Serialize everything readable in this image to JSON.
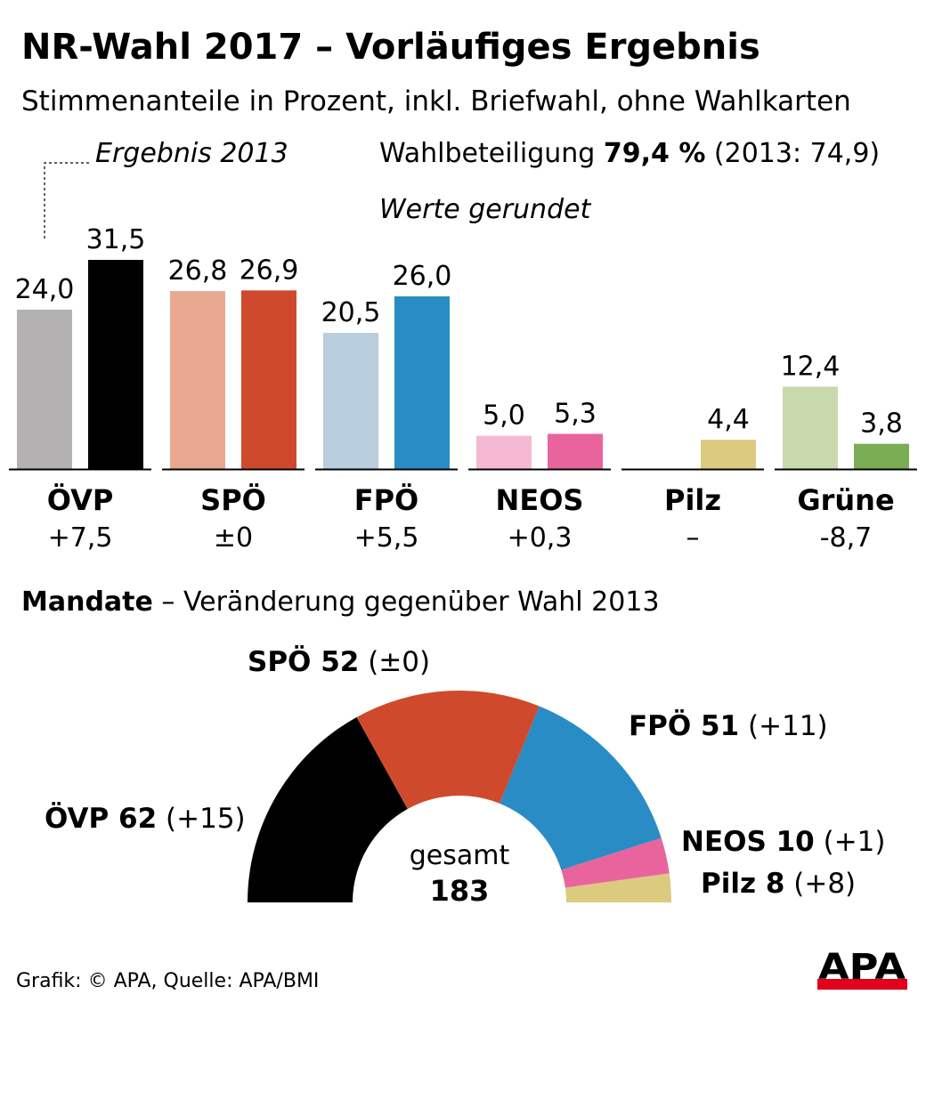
{
  "title": "NR-Wahl 2017 – Vorläufiges Ergebnis",
  "subtitle": "Stimmenanteile in Prozent, inkl. Briefwahl, ohne Wahlkarten",
  "legend_2013": "Ergebnis 2013",
  "turnout": {
    "label": "Wahlbeteiligung ",
    "value": "79,4 %",
    "prev": " (2013: 74,9)"
  },
  "rounded_note": "Werte gerundet",
  "mandate_heading": {
    "bold": "Mandate",
    "rest": " – Veränderung gegenüber Wahl 2013"
  },
  "footer": "Grafik: © APA, Quelle: APA/BMI",
  "logo": "APA",
  "chart_data": [
    {
      "type": "bar",
      "categories": [
        "ÖVP",
        "SPÖ",
        "FPÖ",
        "NEOS",
        "Pilz",
        "Grüne"
      ],
      "series": [
        {
          "name": "Ergebnis 2013",
          "values": [
            24.0,
            26.8,
            20.5,
            5.0,
            null,
            12.4
          ],
          "labels": [
            "24,0",
            "26,8",
            "20,5",
            "5,0",
            "",
            "12,4"
          ],
          "colors": [
            "#b3b1b1",
            "#e8a990",
            "#b8cddd",
            "#f5b9d3",
            "#ffffff",
            "#c7d9ad"
          ]
        },
        {
          "values": [
            31.5,
            26.9,
            26.0,
            5.3,
            4.4,
            3.8
          ],
          "labels": [
            "31,5",
            "26,9",
            "26,0",
            "5,3",
            "4,4",
            "3,8"
          ],
          "colors": [
            "#000000",
            "#cf4a2c",
            "#2a8cc4",
            "#e9649d",
            "#dccb7f",
            "#7aad54"
          ]
        }
      ],
      "changes": [
        "+7,5",
        "±0",
        "+5,5",
        "+0,3",
        "–",
        "-8,7"
      ],
      "ylim": [
        0,
        31.5
      ]
    },
    {
      "type": "pie",
      "shape": "half-donut",
      "center_label": "gesamt",
      "total": "183",
      "slices": [
        {
          "party": "ÖVP",
          "seats": 62,
          "seats_label": "62",
          "change": "(+15)",
          "color": "#000000"
        },
        {
          "party": "SPÖ",
          "seats": 52,
          "seats_label": "52",
          "change": "(±0)",
          "color": "#cf4a2c"
        },
        {
          "party": "FPÖ",
          "seats": 51,
          "seats_label": "51",
          "change": "(+11)",
          "color": "#2a8cc4"
        },
        {
          "party": "NEOS",
          "seats": 10,
          "seats_label": "10",
          "change": "(+1)",
          "color": "#e9649d"
        },
        {
          "party": "Pilz",
          "seats": 8,
          "seats_label": "8",
          "change": "(+8)",
          "color": "#dccb7f"
        }
      ]
    }
  ]
}
